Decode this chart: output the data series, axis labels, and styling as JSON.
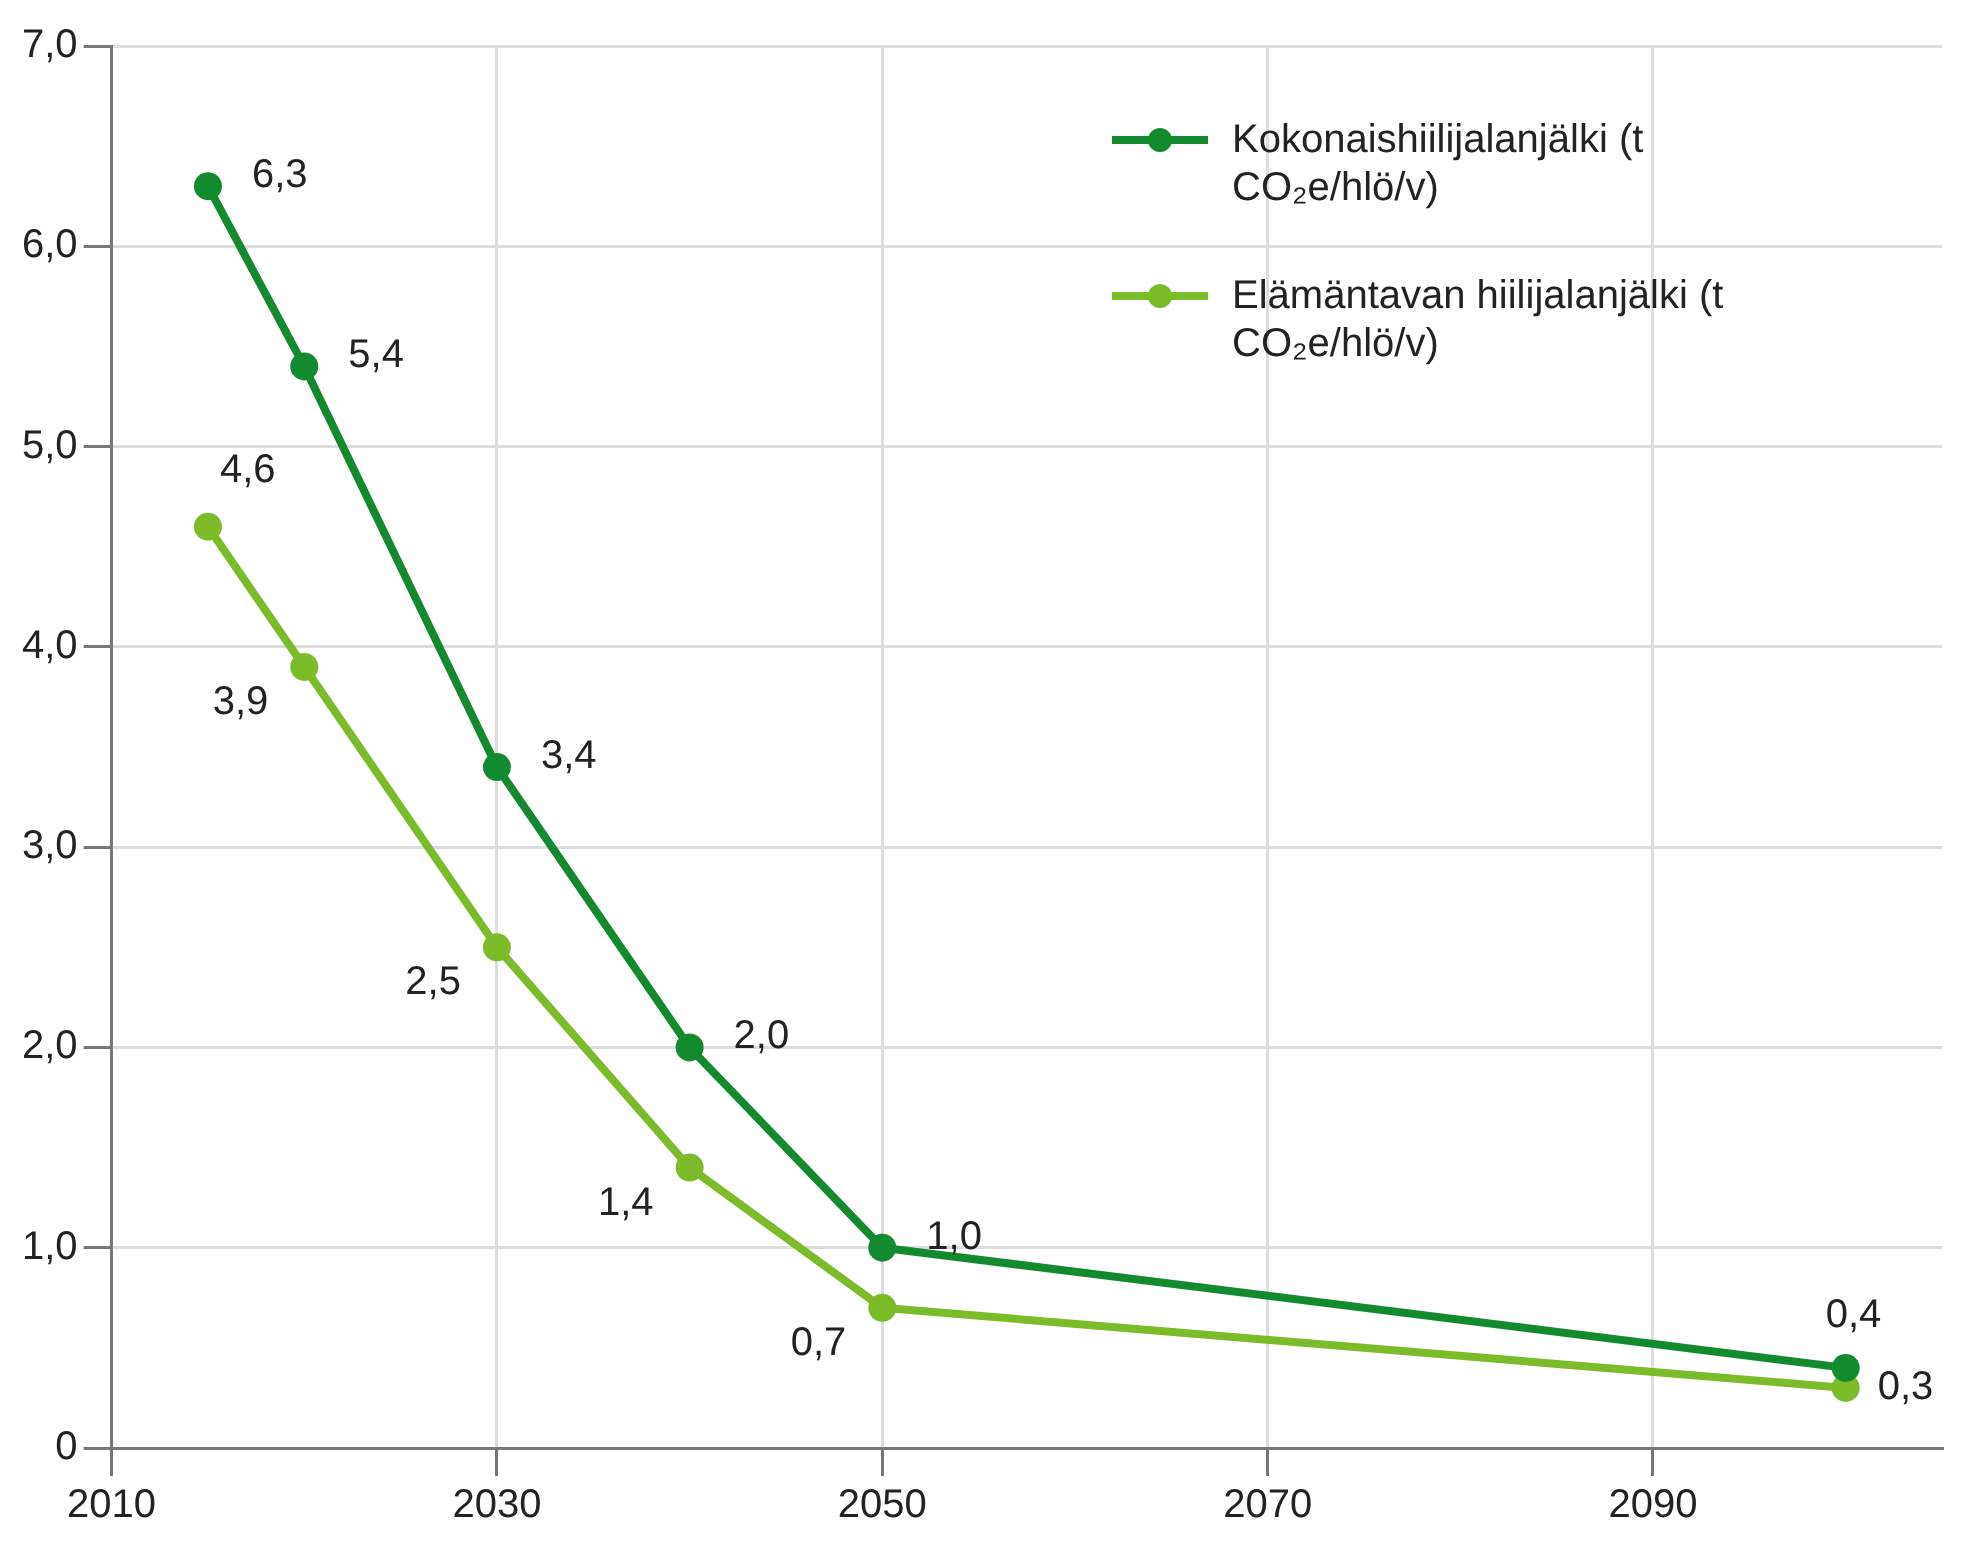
{
  "chart_data": {
    "type": "line",
    "x": [
      2015,
      2020,
      2030,
      2040,
      2050,
      2100
    ],
    "series": [
      {
        "name": "Kokonaishiilijalanjälki (t CO₂e/hlö/v)",
        "color": "#138a2e",
        "values": [
          6.3,
          5.4,
          3.4,
          2.0,
          1.0,
          0.4
        ],
        "value_labels": [
          "6,3",
          "5,4",
          "3,4",
          "2,0",
          "1,0",
          "0,4"
        ]
      },
      {
        "name": "Elämäntavan hiilijalanjälki (t CO₂e/hlö/v)",
        "color": "#7cbb2a",
        "values": [
          4.6,
          3.9,
          2.5,
          1.4,
          0.7,
          0.3
        ],
        "value_labels": [
          "4,6",
          "3,9",
          "2,5",
          "1,4",
          "0,7",
          "0,3"
        ]
      }
    ],
    "xlim": [
      2010,
      2105
    ],
    "xticks": [
      2010,
      2030,
      2050,
      2070,
      2090
    ],
    "ylim": [
      0,
      7
    ],
    "yticks": [
      {
        "value": 0,
        "label": "0"
      },
      {
        "value": 1,
        "label": "1,0"
      },
      {
        "value": 2,
        "label": "2,0"
      },
      {
        "value": 3,
        "label": "3,0"
      },
      {
        "value": 4,
        "label": "4,0"
      },
      {
        "value": 5,
        "label": "5,0"
      },
      {
        "value": 6,
        "label": "6,0"
      },
      {
        "value": 7,
        "label": "7,0"
      }
    ],
    "grid": true,
    "legend": "top right",
    "marker": "circle",
    "line_style": "solid"
  }
}
